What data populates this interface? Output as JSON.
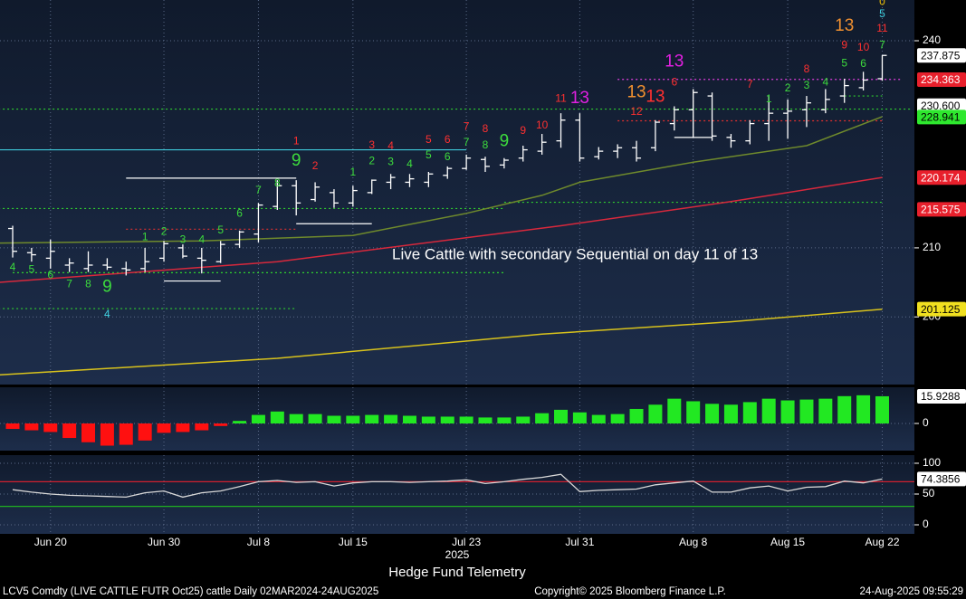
{
  "chart_data": [
    {
      "type": "ohlc",
      "categories": [
        null,
        null,
        "Jun 20",
        null,
        null,
        null,
        null,
        null,
        "Jun 30",
        null,
        null,
        null,
        null,
        "Jul 8",
        null,
        null,
        null,
        null,
        "Jul 15",
        null,
        null,
        null,
        null,
        null,
        "Jul 23",
        null,
        null,
        null,
        null,
        null,
        "Jul 31",
        null,
        null,
        null,
        null,
        null,
        "Aug 8",
        null,
        null,
        null,
        null,
        "Aug 15",
        null,
        null,
        null,
        null,
        "Aug 22"
      ],
      "open": [
        212.8,
        209.3,
        208.5,
        207.5,
        207,
        207.5,
        207,
        207,
        208.5,
        210,
        208.5,
        208,
        210.5,
        212,
        216,
        219,
        217,
        218,
        216.5,
        218,
        219.5,
        219.5,
        219.5,
        220.5,
        221.5,
        222.8,
        222,
        223,
        224,
        225.5,
        228.5,
        223.2,
        224,
        224.5,
        224.5,
        228,
        230,
        232,
        226,
        225.5,
        228,
        229.5,
        230,
        230,
        232,
        233.2,
        234.5
      ],
      "high": [
        213.2,
        210,
        211.2,
        208.5,
        209.5,
        208.5,
        208,
        210,
        211,
        210.5,
        210,
        211,
        212.5,
        216.5,
        219.8,
        219.8,
        219.5,
        218.5,
        219,
        219.9,
        220.7,
        220.7,
        221,
        221.8,
        223.5,
        223.2,
        223,
        224.8,
        226.5,
        229.5,
        229.5,
        224.6,
        225,
        225.5,
        228.5,
        230.5,
        233,
        232.5,
        226.5,
        228.5,
        232,
        231.5,
        232,
        233,
        234.5,
        235.5,
        237.9
      ],
      "low": [
        208.6,
        208,
        207,
        206.5,
        206.5,
        206.8,
        206,
        206.5,
        208,
        208.5,
        206.3,
        207.8,
        210,
        210.8,
        215.5,
        214.7,
        216.7,
        215.8,
        216,
        217.8,
        218.5,
        218.8,
        218.8,
        220,
        221.3,
        221,
        221.5,
        222.5,
        223.5,
        224.5,
        222.5,
        222.8,
        223,
        222.5,
        224,
        227,
        226,
        225.5,
        224.5,
        225,
        225.5,
        225.8,
        227.5,
        229.5,
        231,
        232.8,
        234.2
      ],
      "close": [
        209.5,
        209,
        209.5,
        207.8,
        207.5,
        207.2,
        206.8,
        208,
        210.6,
        208.8,
        208.2,
        210.5,
        212.3,
        216.2,
        219,
        216.5,
        218.8,
        216.5,
        218.3,
        219.8,
        220.2,
        220,
        220.7,
        221.5,
        223,
        221.8,
        222.7,
        224.2,
        225.3,
        228.5,
        223,
        224,
        224.5,
        223,
        228.2,
        230,
        232.5,
        226.2,
        225.5,
        228,
        229.5,
        229.8,
        231,
        231.5,
        233.5,
        234.3,
        237.875
      ],
      "color": "#ffffff",
      "ylim": [
        190.2,
        245.9
      ],
      "yticks": [
        200,
        210,
        240
      ],
      "overlays": [
        {
          "color": "#6f8a2c",
          "x": [
            -0.7,
            10,
            18,
            24,
            28,
            30,
            36,
            42,
            46
          ],
          "values": [
            210.7,
            211,
            211.8,
            215,
            217.6,
            219.5,
            222.4,
            224.8,
            229
          ]
        },
        {
          "color": "#d8283c",
          "x": [
            -0.7,
            14,
            29,
            38,
            46
          ],
          "values": [
            205,
            208,
            213.2,
            216.7,
            220.2
          ]
        },
        {
          "color": "#d8c21c",
          "x": [
            -0.7,
            14,
            28,
            38,
            46
          ],
          "values": [
            191.6,
            194,
            197.5,
            199.3,
            201.1
          ]
        }
      ],
      "levels": [
        {
          "value": 224.2,
          "from": -1,
          "to": 24,
          "color": "#3fc8d8",
          "dash": false
        },
        {
          "value": 215.7,
          "from": -1,
          "to": 26,
          "color": "#2fcf2f",
          "dash": true
        },
        {
          "value": 206.4,
          "from": 0,
          "to": 26,
          "color": "#2fcf2f",
          "dash": true
        },
        {
          "value": 201.2,
          "from": -1,
          "to": 15,
          "color": "#2fcf2f",
          "dash": true
        },
        {
          "value": 212.7,
          "from": 6,
          "to": 15,
          "color": "#e03030",
          "dash": true
        },
        {
          "value": 220.1,
          "from": 6,
          "to": 15,
          "color": "#ffffff",
          "dash": false
        },
        {
          "value": 213.5,
          "from": 15,
          "to": 19,
          "color": "#ffffff",
          "dash": false
        },
        {
          "value": 205.2,
          "from": 8,
          "to": 11,
          "color": "#ffffff",
          "dash": false
        },
        {
          "value": 234.4,
          "from": 32,
          "to": 47,
          "color": "#e040e0",
          "dash": true
        },
        {
          "value": 228.4,
          "from": 32,
          "to": 46,
          "color": "#e03030",
          "dash": true
        },
        {
          "value": 230.1,
          "from": -1,
          "to": 47.5,
          "color": "#2fcf2f",
          "dash": true
        },
        {
          "value": 216.6,
          "from": 26,
          "to": 46,
          "color": "#2fcf2f",
          "dash": true
        },
        {
          "value": 226.0,
          "from": 35,
          "to": 37,
          "color": "#ffffff",
          "dash": false
        },
        {
          "value": 232.0,
          "from": 44,
          "to": 46,
          "color": "#2fcf2f",
          "dash": true
        }
      ],
      "annotations": [
        {
          "text": "4",
          "x": 0,
          "y": 207.1,
          "color": "#3ddc3d",
          "big": false
        },
        {
          "text": "5",
          "x": 1,
          "y": 206.8,
          "color": "#3ddc3d",
          "big": false
        },
        {
          "text": "6",
          "x": 2,
          "y": 206.0,
          "color": "#3ddc3d",
          "big": false
        },
        {
          "text": "7",
          "x": 3,
          "y": 204.7,
          "color": "#3ddc3d",
          "big": false
        },
        {
          "text": "8",
          "x": 4,
          "y": 204.7,
          "color": "#3ddc3d",
          "big": false
        },
        {
          "text": "9",
          "x": 5,
          "y": 204.3,
          "color": "#3ddc3d",
          "big": true
        },
        {
          "text": "4",
          "x": 5,
          "y": 200.3,
          "color": "#40d0e0",
          "big": false
        },
        {
          "text": "1",
          "x": 7,
          "y": 211.5,
          "color": "#3ddc3d",
          "big": false
        },
        {
          "text": "2",
          "x": 8,
          "y": 212.3,
          "color": "#3ddc3d",
          "big": false
        },
        {
          "text": "3",
          "x": 9,
          "y": 211.1,
          "color": "#3ddc3d",
          "big": false
        },
        {
          "text": "4",
          "x": 10,
          "y": 211.1,
          "color": "#3ddc3d",
          "big": false
        },
        {
          "text": "5",
          "x": 11,
          "y": 212.5,
          "color": "#3ddc3d",
          "big": false
        },
        {
          "text": "6",
          "x": 12,
          "y": 214.9,
          "color": "#3ddc3d",
          "big": false
        },
        {
          "text": "7",
          "x": 13,
          "y": 218.3,
          "color": "#3ddc3d",
          "big": false
        },
        {
          "text": "8",
          "x": 14,
          "y": 219.3,
          "color": "#3ddc3d",
          "big": false
        },
        {
          "text": "9",
          "x": 15,
          "y": 222.6,
          "color": "#3ddc3d",
          "big": true
        },
        {
          "text": "1",
          "x": 15,
          "y": 225.4,
          "color": "#ff3030",
          "big": false
        },
        {
          "text": "2",
          "x": 16,
          "y": 221.8,
          "color": "#ff3030",
          "big": false
        },
        {
          "text": "1",
          "x": 18,
          "y": 220.9,
          "color": "#3ddc3d",
          "big": false
        },
        {
          "text": "2",
          "x": 19,
          "y": 222.5,
          "color": "#3ddc3d",
          "big": false
        },
        {
          "text": "3",
          "x": 20,
          "y": 222.4,
          "color": "#3ddc3d",
          "big": false
        },
        {
          "text": "4",
          "x": 21,
          "y": 222.1,
          "color": "#3ddc3d",
          "big": false
        },
        {
          "text": "5",
          "x": 22,
          "y": 223.4,
          "color": "#3ddc3d",
          "big": false
        },
        {
          "text": "6",
          "x": 23,
          "y": 223.1,
          "color": "#3ddc3d",
          "big": false
        },
        {
          "text": "7",
          "x": 24,
          "y": 225.2,
          "color": "#3ddc3d",
          "big": false
        },
        {
          "text": "8",
          "x": 25,
          "y": 224.8,
          "color": "#3ddc3d",
          "big": false
        },
        {
          "text": "9",
          "x": 26,
          "y": 225.4,
          "color": "#3ddc3d",
          "big": true
        },
        {
          "text": "3",
          "x": 19,
          "y": 224.8,
          "color": "#ff3030",
          "big": false
        },
        {
          "text": "4",
          "x": 20,
          "y": 224.7,
          "color": "#ff3030",
          "big": false
        },
        {
          "text": "5",
          "x": 22,
          "y": 225.6,
          "color": "#ff3030",
          "big": false
        },
        {
          "text": "6",
          "x": 23,
          "y": 225.6,
          "color": "#ff3030",
          "big": false
        },
        {
          "text": "7",
          "x": 24,
          "y": 227.5,
          "color": "#ff3030",
          "big": false
        },
        {
          "text": "8",
          "x": 25,
          "y": 227.2,
          "color": "#ff3030",
          "big": false
        },
        {
          "text": "9",
          "x": 27,
          "y": 226.9,
          "color": "#ff3030",
          "big": false
        },
        {
          "text": "10",
          "x": 28,
          "y": 227.7,
          "color": "#ff3030",
          "big": false
        },
        {
          "text": "11",
          "x": 29,
          "y": 231.6,
          "color": "#ff3030",
          "big": false
        },
        {
          "text": "13",
          "x": 30,
          "y": 231.6,
          "color": "#e020e0",
          "big": true
        },
        {
          "text": "12",
          "x": 33,
          "y": 229.7,
          "color": "#ff3030",
          "big": false
        },
        {
          "text": "13",
          "x": 33,
          "y": 232.5,
          "color": "#f09030",
          "big": true
        },
        {
          "text": "13",
          "x": 34,
          "y": 231.8,
          "color": "#ff3030",
          "big": true
        },
        {
          "text": "6",
          "x": 35,
          "y": 233.9,
          "color": "#ff3030",
          "big": false
        },
        {
          "text": "13",
          "x": 35,
          "y": 236.9,
          "color": "#e020e0",
          "big": true
        },
        {
          "text": "7",
          "x": 39,
          "y": 233.6,
          "color": "#ff3030",
          "big": false
        },
        {
          "text": "1",
          "x": 40,
          "y": 231.5,
          "color": "#3ddc3d",
          "big": false
        },
        {
          "text": "2",
          "x": 41,
          "y": 233.1,
          "color": "#3ddc3d",
          "big": false
        },
        {
          "text": "3",
          "x": 42,
          "y": 233.5,
          "color": "#3ddc3d",
          "big": false
        },
        {
          "text": "8",
          "x": 42,
          "y": 235.8,
          "color": "#ff3030",
          "big": false
        },
        {
          "text": "4",
          "x": 43,
          "y": 233.9,
          "color": "#3ddc3d",
          "big": false
        },
        {
          "text": "5",
          "x": 44,
          "y": 236.7,
          "color": "#3ddc3d",
          "big": false
        },
        {
          "text": "9",
          "x": 44,
          "y": 239.3,
          "color": "#ff3030",
          "big": false
        },
        {
          "text": "13",
          "x": 44,
          "y": 242.1,
          "color": "#f09030",
          "big": true
        },
        {
          "text": "6",
          "x": 45,
          "y": 236.6,
          "color": "#3ddc3d",
          "big": false
        },
        {
          "text": "10",
          "x": 45,
          "y": 239.0,
          "color": "#ff3030",
          "big": false
        },
        {
          "text": "7",
          "x": 46,
          "y": 239.3,
          "color": "#3ddc3d",
          "big": false
        },
        {
          "text": "11",
          "x": 46,
          "y": 241.7,
          "color": "#ff3030",
          "big": false
        },
        {
          "text": "5",
          "x": 46,
          "y": 243.8,
          "color": "#40d0e0",
          "big": false
        },
        {
          "text": "0",
          "x": 46,
          "y": 245.6,
          "color": "#f0c000",
          "big": false
        }
      ],
      "tags": [
        {
          "value": 237.875,
          "color": "#ffffff"
        },
        {
          "value": 234.363,
          "color": "#e8202c"
        },
        {
          "value": 230.6,
          "label": "230.600",
          "color": "#ffffff"
        },
        {
          "value": 228.941,
          "color": "#2ee82e"
        },
        {
          "value": 220.174,
          "color": "#e8202c"
        },
        {
          "value": 215.575,
          "color": "#e8202c"
        },
        {
          "value": 201.125,
          "color": "#f0e020"
        }
      ],
      "note": "Live Cattle with secondary Sequential on day 11 of 13",
      "year": "2025",
      "xlabel": "Hedge Fund Telemetry"
    },
    {
      "type": "bar",
      "values": [
        -3.2,
        -4,
        -5,
        -8.5,
        -11,
        -13,
        -12.5,
        -10,
        -5.5,
        -5,
        -4,
        -1.5,
        1.5,
        5,
        7,
        5.5,
        5.5,
        4.5,
        4.5,
        5,
        5,
        4.5,
        4,
        4,
        4,
        3.5,
        3.5,
        4,
        6,
        8,
        6.5,
        5,
        5.5,
        8.5,
        11,
        14.5,
        13,
        11.5,
        11,
        12.5,
        14.5,
        13.5,
        14,
        14.5,
        16,
        16.5,
        15.9288
      ],
      "positive_color": "#22e822",
      "negative_color": "#ff1010",
      "ylim": [
        -15.9,
        21.2
      ],
      "yticks": [
        0
      ],
      "tag": {
        "value": 15.9288,
        "color": "#ffffff"
      }
    },
    {
      "type": "line",
      "values": [
        57,
        53,
        50,
        48,
        47,
        46,
        45,
        52,
        55,
        45,
        52,
        55,
        62,
        70,
        72,
        69,
        70,
        63,
        68,
        70,
        70,
        69,
        70,
        71,
        73,
        67,
        70,
        74,
        77,
        82,
        54,
        56,
        57,
        58,
        65,
        68,
        71,
        53,
        53,
        60,
        63,
        55,
        61,
        62,
        71,
        68,
        74.3856
      ],
      "color": "#d8d8d8",
      "ylim": [
        -14.7,
        113.2
      ],
      "yticks": [
        0,
        50,
        100
      ],
      "levels": [
        {
          "value": 70,
          "color": "#d02030"
        },
        {
          "value": 30,
          "color": "#20b020"
        }
      ],
      "tag": {
        "value": 74.3856,
        "color": "#ffffff"
      }
    }
  ],
  "footer": {
    "left": "LCV5 Comdty (LIVE CATTLE FUTR  Oct25) cattle  Daily 02MAR2024-24AUG2025",
    "center": "Copyright© 2025 Bloomberg Finance L.P.",
    "right": "24-Aug-2025 09:55:29"
  }
}
